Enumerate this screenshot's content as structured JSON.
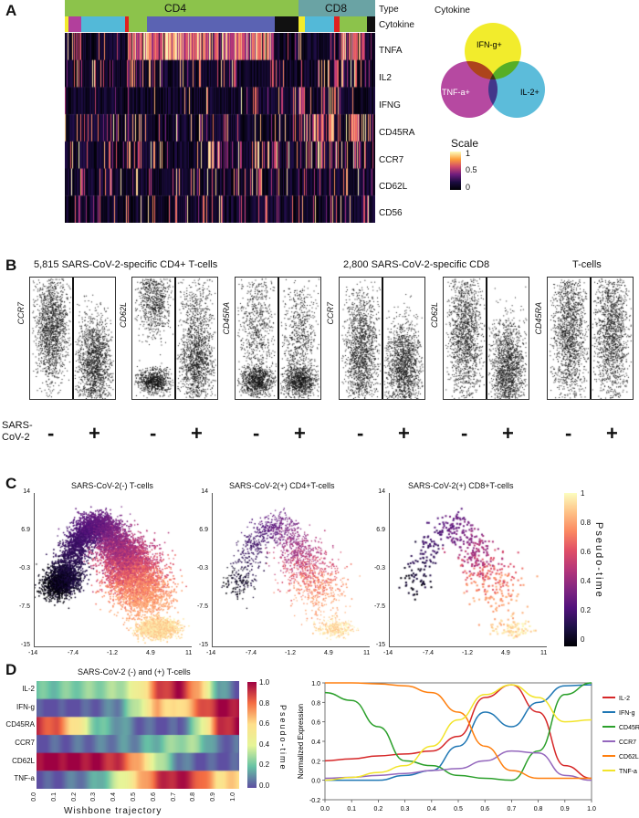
{
  "panels": {
    "a": "A",
    "b": "B",
    "c": "C",
    "d": "D"
  },
  "panel_a": {
    "header_types": [
      "CD4",
      "CD8"
    ],
    "row_labels": [
      "Type",
      "Cytokine",
      "TNFA",
      "IL2",
      "IFNG",
      "CD45RA",
      "CCR7",
      "CD62L",
      "CD56"
    ],
    "cytokine_title": "Cytokine",
    "venn": {
      "labels": [
        "IFN-g+",
        "TNF-a+",
        "IL-2+"
      ],
      "colors": [
        "#f2ec2c",
        "#b23f9c",
        "#53b9d8"
      ]
    },
    "scale": {
      "title": "Scale",
      "ticks": [
        "1",
        "0.5",
        "0"
      ]
    }
  },
  "panel_b": {
    "titles": [
      "5,815 SARS-CoV-2-specific CD4+ T-cells",
      "2,800 SARS-CoV-2-specific  CD8",
      "T-cells"
    ],
    "y_labels": [
      "CCR7",
      "CD62L",
      "CD45RA",
      "CCR7",
      "CD62L",
      "CD45RA"
    ],
    "row_label": "SARS-\nCoV-2",
    "signs": [
      "-",
      "+"
    ]
  },
  "panel_c": {
    "titles": [
      "SARS-CoV-2(-) T-cells",
      "SARS-CoV-2(+) CD4+T-cells",
      "SARS-CoV-2(+) CD8+T-cells"
    ],
    "y_ticks": [
      "14",
      "6.9",
      "-0.3",
      "-7.5",
      "-15"
    ],
    "x_ticks": [
      "-14",
      "-7.4",
      "-1.2",
      "4.9",
      "11"
    ],
    "colorbar_label": "Pseudo-time",
    "colorbar_ticks": [
      "1",
      "0.8",
      "0.6",
      "0.4",
      "0.2",
      "0"
    ]
  },
  "panel_d": {
    "heatmap_title": "SARS-CoV-2 (-) and (+) T-cells",
    "heatmap_rows": [
      "IL-2",
      "IFN-g",
      "CD45RA",
      "CCR7",
      "CD62L",
      "TNF-a"
    ],
    "x_ticks": [
      "0.0",
      "0.1",
      "0.2",
      "0.3",
      "0.4",
      "0.5",
      "0.6",
      "0.7",
      "0.8",
      "0.9",
      "1.0"
    ],
    "xlabel": "Wishbone trajectory",
    "colorbar_label": "Pseudo-time",
    "colorbar_ticks": [
      "1.0",
      "0.8",
      "0.6",
      "0.4",
      "0.2",
      "0.0"
    ]
  },
  "chart_data": [
    {
      "type": "line",
      "xlabel": "Wishbone trajectory",
      "ylabel": "Normalized Expression",
      "xlim": [
        0.0,
        1.0
      ],
      "ylim": [
        -0.2,
        1.0
      ],
      "y_ticks": [
        "1.0",
        "0.8",
        "0.6",
        "0.4",
        "0.2",
        "0.0",
        "-0.2"
      ],
      "x_ticks": [
        "0.0",
        "0.1",
        "0.2",
        "0.3",
        "0.4",
        "0.5",
        "0.6",
        "0.7",
        "0.8",
        "0.9",
        "1.0"
      ],
      "legend_position": "right",
      "x": [
        0.0,
        0.1,
        0.2,
        0.3,
        0.4,
        0.5,
        0.6,
        0.7,
        0.8,
        0.9,
        1.0
      ],
      "series": [
        {
          "name": "IL-2",
          "color": "#d62728",
          "values": [
            0.2,
            0.22,
            0.25,
            0.27,
            0.3,
            0.45,
            0.85,
            0.98,
            0.7,
            0.15,
            0.02
          ]
        },
        {
          "name": "IFN-g",
          "color": "#1f77b4",
          "values": [
            0.0,
            0.0,
            0.0,
            0.05,
            0.1,
            0.35,
            0.7,
            0.55,
            0.8,
            0.97,
            0.98
          ]
        },
        {
          "name": "CD45RA",
          "color": "#2ca02c",
          "values": [
            0.9,
            0.82,
            0.55,
            0.2,
            0.15,
            0.05,
            0.02,
            0.0,
            0.3,
            0.88,
            1.0
          ]
        },
        {
          "name": "CCR7",
          "color": "#9467bd",
          "values": [
            0.02,
            0.03,
            0.05,
            0.07,
            0.1,
            0.12,
            0.2,
            0.3,
            0.28,
            0.05,
            0.0
          ]
        },
        {
          "name": "CD62L",
          "color": "#ff7f0e",
          "values": [
            1.0,
            1.0,
            0.99,
            0.97,
            0.9,
            0.7,
            0.35,
            0.1,
            0.02,
            0.02,
            0.02
          ]
        },
        {
          "name": "TNF-a",
          "color": "#f2e42a",
          "values": [
            0.0,
            0.03,
            0.08,
            0.15,
            0.35,
            0.62,
            0.88,
            0.98,
            0.85,
            0.6,
            0.62
          ]
        }
      ]
    }
  ]
}
